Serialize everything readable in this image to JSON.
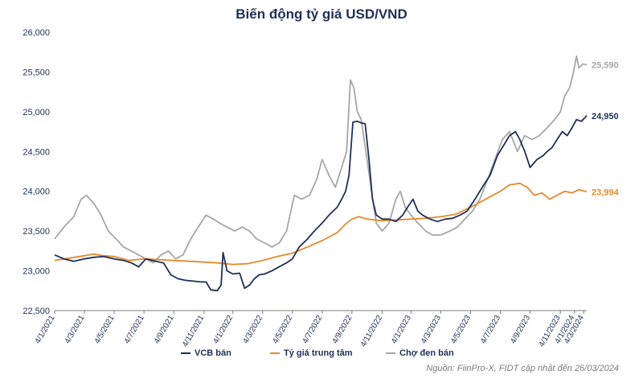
{
  "chart_data": {
    "type": "line",
    "title": "Biến động tỷ giá USD/VND",
    "ylim": [
      22500,
      26000
    ],
    "yticks": [
      "22,500",
      "23,000",
      "23,500",
      "24,000",
      "24,500",
      "25,000",
      "25,500",
      "26,000"
    ],
    "x_range": [
      "2021-04-01",
      "2024-03-26"
    ],
    "xticks": [
      {
        "date": "2021-04-01",
        "label": "4/1/2021"
      },
      {
        "date": "2021-06-01",
        "label": "4/3/2021"
      },
      {
        "date": "2021-08-01",
        "label": "4/5/2021"
      },
      {
        "date": "2021-10-01",
        "label": "4/7/2021"
      },
      {
        "date": "2021-12-01",
        "label": "4/9/2021"
      },
      {
        "date": "2022-02-01",
        "label": "4/11/2021"
      },
      {
        "date": "2022-04-01",
        "label": "4/1/2022"
      },
      {
        "date": "2022-06-01",
        "label": "4/3/2022"
      },
      {
        "date": "2022-08-01",
        "label": "4/5/2022"
      },
      {
        "date": "2022-10-01",
        "label": "4/7/2022"
      },
      {
        "date": "2022-12-01",
        "label": "4/9/2022"
      },
      {
        "date": "2023-02-01",
        "label": "4/11/2022"
      },
      {
        "date": "2023-04-01",
        "label": "4/1/2023"
      },
      {
        "date": "2023-06-01",
        "label": "4/3/2023"
      },
      {
        "date": "2023-08-01",
        "label": "4/5/2023"
      },
      {
        "date": "2023-10-01",
        "label": "4/7/2023"
      },
      {
        "date": "2023-12-01",
        "label": "4/9/2023"
      },
      {
        "date": "2024-02-01",
        "label": "4/11/2023"
      },
      {
        "date": "2024-03-01",
        "label": "4/1/2024"
      },
      {
        "date": "2024-03-20",
        "label": "4/3/2024"
      }
    ],
    "grid": false,
    "legend_position": "bottom",
    "series": [
      {
        "name": "VCB bán",
        "color": "#1f2f57",
        "end_label": "24,950",
        "points": [
          [
            "2021-04-01",
            23200
          ],
          [
            "2021-04-20",
            23150
          ],
          [
            "2021-05-10",
            23120
          ],
          [
            "2021-06-01",
            23150
          ],
          [
            "2021-06-20",
            23170
          ],
          [
            "2021-07-10",
            23180
          ],
          [
            "2021-08-01",
            23150
          ],
          [
            "2021-08-20",
            23130
          ],
          [
            "2021-09-05",
            23100
          ],
          [
            "2021-09-20",
            23050
          ],
          [
            "2021-10-05",
            23150
          ],
          [
            "2021-10-25",
            23120
          ],
          [
            "2021-11-10",
            23100
          ],
          [
            "2021-11-25",
            22950
          ],
          [
            "2021-12-10",
            22900
          ],
          [
            "2021-12-25",
            22880
          ],
          [
            "2022-01-10",
            22870
          ],
          [
            "2022-01-25",
            22860
          ],
          [
            "2022-02-05",
            22860
          ],
          [
            "2022-02-15",
            22760
          ],
          [
            "2022-02-28",
            22750
          ],
          [
            "2022-03-08",
            22820
          ],
          [
            "2022-03-12",
            23230
          ],
          [
            "2022-03-20",
            23000
          ],
          [
            "2022-04-01",
            22960
          ],
          [
            "2022-04-15",
            22970
          ],
          [
            "2022-04-25",
            22780
          ],
          [
            "2022-05-05",
            22820
          ],
          [
            "2022-05-15",
            22900
          ],
          [
            "2022-05-25",
            22950
          ],
          [
            "2022-06-05",
            22960
          ],
          [
            "2022-06-20",
            23000
          ],
          [
            "2022-07-05",
            23050
          ],
          [
            "2022-07-20",
            23100
          ],
          [
            "2022-08-01",
            23150
          ],
          [
            "2022-08-15",
            23300
          ],
          [
            "2022-09-01",
            23400
          ],
          [
            "2022-09-15",
            23500
          ],
          [
            "2022-10-01",
            23600
          ],
          [
            "2022-10-15",
            23700
          ],
          [
            "2022-11-01",
            23800
          ],
          [
            "2022-11-10",
            23900
          ],
          [
            "2022-11-18",
            24000
          ],
          [
            "2022-11-25",
            24200
          ],
          [
            "2022-12-03",
            24870
          ],
          [
            "2022-12-12",
            24880
          ],
          [
            "2022-12-20",
            24860
          ],
          [
            "2022-12-28",
            24850
          ],
          [
            "2023-01-05",
            24400
          ],
          [
            "2023-01-12",
            23900
          ],
          [
            "2023-01-20",
            23700
          ],
          [
            "2023-02-01",
            23650
          ],
          [
            "2023-02-15",
            23650
          ],
          [
            "2023-03-01",
            23620
          ],
          [
            "2023-03-15",
            23700
          ],
          [
            "2023-03-25",
            23800
          ],
          [
            "2023-04-05",
            23900
          ],
          [
            "2023-04-15",
            23750
          ],
          [
            "2023-04-25",
            23700
          ],
          [
            "2023-05-10",
            23650
          ],
          [
            "2023-05-25",
            23620
          ],
          [
            "2023-06-10",
            23650
          ],
          [
            "2023-06-25",
            23660
          ],
          [
            "2023-07-10",
            23700
          ],
          [
            "2023-07-25",
            23750
          ],
          [
            "2023-08-10",
            23900
          ],
          [
            "2023-08-25",
            24050
          ],
          [
            "2023-09-10",
            24200
          ],
          [
            "2023-09-25",
            24450
          ],
          [
            "2023-10-10",
            24600
          ],
          [
            "2023-10-20",
            24700
          ],
          [
            "2023-11-01",
            24750
          ],
          [
            "2023-11-10",
            24650
          ],
          [
            "2023-11-20",
            24500
          ],
          [
            "2023-12-01",
            24300
          ],
          [
            "2023-12-15",
            24400
          ],
          [
            "2023-12-28",
            24450
          ],
          [
            "2024-01-05",
            24500
          ],
          [
            "2024-01-15",
            24550
          ],
          [
            "2024-01-25",
            24650
          ],
          [
            "2024-02-05",
            24750
          ],
          [
            "2024-02-15",
            24700
          ],
          [
            "2024-02-25",
            24800
          ],
          [
            "2024-03-05",
            24900
          ],
          [
            "2024-03-15",
            24880
          ],
          [
            "2024-03-26",
            24950
          ]
        ]
      },
      {
        "name": "Tỷ giá trung tâm",
        "color": "#e68a2e",
        "end_label": "23,994",
        "points": [
          [
            "2021-04-01",
            23130
          ],
          [
            "2021-05-01",
            23160
          ],
          [
            "2021-06-01",
            23190
          ],
          [
            "2021-06-20",
            23210
          ],
          [
            "2021-07-10",
            23190
          ],
          [
            "2021-08-01",
            23180
          ],
          [
            "2021-09-01",
            23130
          ],
          [
            "2021-10-01",
            23150
          ],
          [
            "2021-11-01",
            23140
          ],
          [
            "2021-12-01",
            23130
          ],
          [
            "2022-01-01",
            23120
          ],
          [
            "2022-02-01",
            23110
          ],
          [
            "2022-03-01",
            23100
          ],
          [
            "2022-04-01",
            23080
          ],
          [
            "2022-05-01",
            23090
          ],
          [
            "2022-06-01",
            23130
          ],
          [
            "2022-07-01",
            23180
          ],
          [
            "2022-08-01",
            23220
          ],
          [
            "2022-09-01",
            23300
          ],
          [
            "2022-10-01",
            23380
          ],
          [
            "2022-11-01",
            23480
          ],
          [
            "2022-11-20",
            23600
          ],
          [
            "2022-12-01",
            23650
          ],
          [
            "2022-12-15",
            23680
          ],
          [
            "2023-01-01",
            23650
          ],
          [
            "2023-02-01",
            23630
          ],
          [
            "2023-03-01",
            23640
          ],
          [
            "2023-04-01",
            23650
          ],
          [
            "2023-05-01",
            23660
          ],
          [
            "2023-06-01",
            23680
          ],
          [
            "2023-07-01",
            23710
          ],
          [
            "2023-08-01",
            23800
          ],
          [
            "2023-09-01",
            23900
          ],
          [
            "2023-10-01",
            24000
          ],
          [
            "2023-10-20",
            24080
          ],
          [
            "2023-11-10",
            24100
          ],
          [
            "2023-11-25",
            24050
          ],
          [
            "2023-12-10",
            23950
          ],
          [
            "2023-12-25",
            23980
          ],
          [
            "2024-01-10",
            23900
          ],
          [
            "2024-01-25",
            23950
          ],
          [
            "2024-02-10",
            24000
          ],
          [
            "2024-02-25",
            23980
          ],
          [
            "2024-03-10",
            24020
          ],
          [
            "2024-03-26",
            23994
          ]
        ]
      },
      {
        "name": "Chợ đen bán",
        "color": "#a6a6a6",
        "end_label": "25,590",
        "points": [
          [
            "2021-04-01",
            23400
          ],
          [
            "2021-04-20",
            23550
          ],
          [
            "2021-05-10",
            23680
          ],
          [
            "2021-05-25",
            23900
          ],
          [
            "2021-06-05",
            23950
          ],
          [
            "2021-06-20",
            23850
          ],
          [
            "2021-07-05",
            23700
          ],
          [
            "2021-07-20",
            23500
          ],
          [
            "2021-08-05",
            23400
          ],
          [
            "2021-08-20",
            23300
          ],
          [
            "2021-09-05",
            23250
          ],
          [
            "2021-09-20",
            23200
          ],
          [
            "2021-10-05",
            23150
          ],
          [
            "2021-10-20",
            23100
          ],
          [
            "2021-11-05",
            23200
          ],
          [
            "2021-11-20",
            23250
          ],
          [
            "2021-12-05",
            23150
          ],
          [
            "2021-12-20",
            23200
          ],
          [
            "2022-01-05",
            23400
          ],
          [
            "2022-01-20",
            23550
          ],
          [
            "2022-02-05",
            23700
          ],
          [
            "2022-02-20",
            23650
          ],
          [
            "2022-03-05",
            23600
          ],
          [
            "2022-03-20",
            23550
          ],
          [
            "2022-04-05",
            23500
          ],
          [
            "2022-04-20",
            23550
          ],
          [
            "2022-05-05",
            23500
          ],
          [
            "2022-05-20",
            23400
          ],
          [
            "2022-06-05",
            23350
          ],
          [
            "2022-06-20",
            23300
          ],
          [
            "2022-07-05",
            23350
          ],
          [
            "2022-07-20",
            23500
          ],
          [
            "2022-08-05",
            23950
          ],
          [
            "2022-08-20",
            23900
          ],
          [
            "2022-09-05",
            23950
          ],
          [
            "2022-09-20",
            24150
          ],
          [
            "2022-10-01",
            24400
          ],
          [
            "2022-10-15",
            24200
          ],
          [
            "2022-10-28",
            24050
          ],
          [
            "2022-11-10",
            24300
          ],
          [
            "2022-11-20",
            24500
          ],
          [
            "2022-11-28",
            25400
          ],
          [
            "2022-12-05",
            25300
          ],
          [
            "2022-12-12",
            25000
          ],
          [
            "2022-12-20",
            24900
          ],
          [
            "2023-01-01",
            24400
          ],
          [
            "2023-01-10",
            24000
          ],
          [
            "2023-01-20",
            23600
          ],
          [
            "2023-02-01",
            23500
          ],
          [
            "2023-02-15",
            23600
          ],
          [
            "2023-03-01",
            23900
          ],
          [
            "2023-03-10",
            24000
          ],
          [
            "2023-03-20",
            23800
          ],
          [
            "2023-04-01",
            23700
          ],
          [
            "2023-04-15",
            23600
          ],
          [
            "2023-05-01",
            23500
          ],
          [
            "2023-05-15",
            23450
          ],
          [
            "2023-06-01",
            23450
          ],
          [
            "2023-06-20",
            23500
          ],
          [
            "2023-07-05",
            23550
          ],
          [
            "2023-07-20",
            23650
          ],
          [
            "2023-08-05",
            23750
          ],
          [
            "2023-08-20",
            23900
          ],
          [
            "2023-09-05",
            24150
          ],
          [
            "2023-09-20",
            24400
          ],
          [
            "2023-10-05",
            24650
          ],
          [
            "2023-10-20",
            24750
          ],
          [
            "2023-11-05",
            24500
          ],
          [
            "2023-11-20",
            24700
          ],
          [
            "2023-12-05",
            24650
          ],
          [
            "2023-12-20",
            24700
          ],
          [
            "2024-01-05",
            24800
          ],
          [
            "2024-01-20",
            24900
          ],
          [
            "2024-02-01",
            25000
          ],
          [
            "2024-02-10",
            25200
          ],
          [
            "2024-02-20",
            25300
          ],
          [
            "2024-02-28",
            25500
          ],
          [
            "2024-03-05",
            25700
          ],
          [
            "2024-03-10",
            25550
          ],
          [
            "2024-03-18",
            25600
          ],
          [
            "2024-03-26",
            25590
          ]
        ]
      }
    ]
  },
  "source": "Nguồn: FiinPro-X, FIDT cập nhật đến 26/03/2024"
}
